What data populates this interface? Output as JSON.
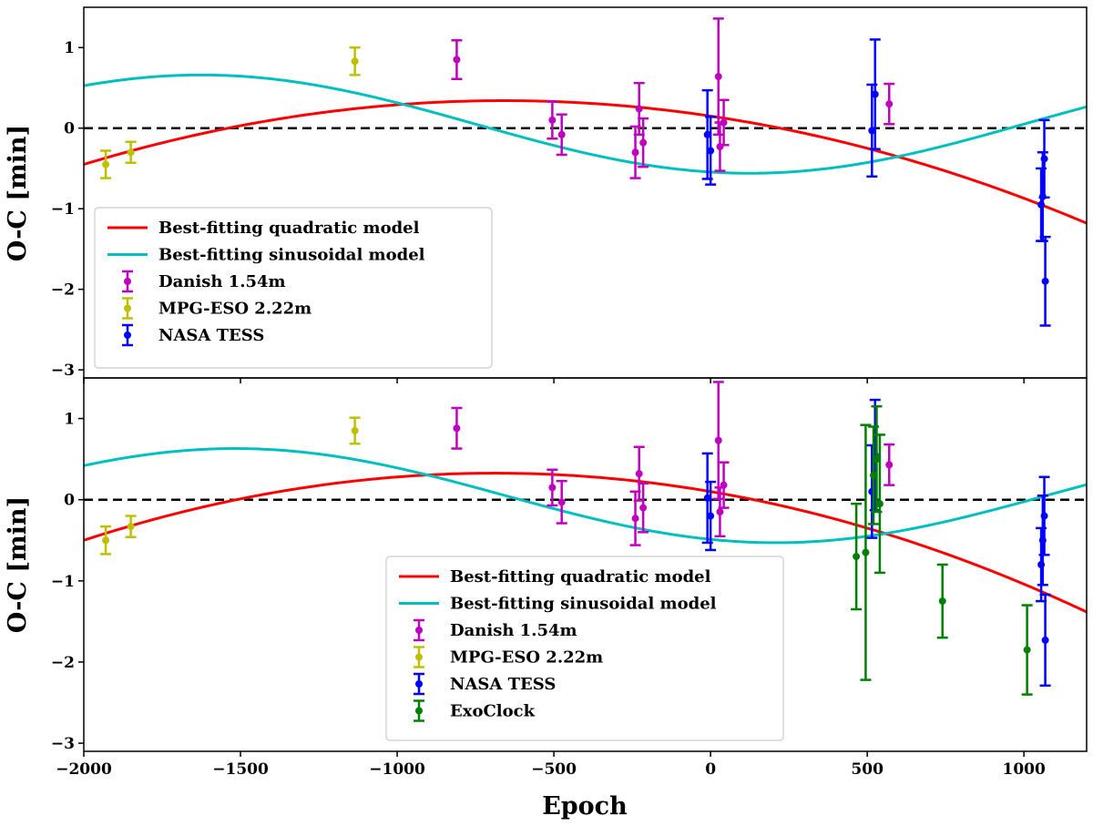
{
  "chart_data": {
    "type": "scatter",
    "xlabel": "Epoch",
    "ylabel": "O-C [min]",
    "xlim": [
      -2000,
      1200
    ],
    "x_ticks": [
      -2000,
      -1500,
      -1000,
      -500,
      0,
      500,
      1000
    ],
    "x_tick_labels": [
      "−2000",
      "−1500",
      "−1000",
      "−500",
      "0",
      "500",
      "1000"
    ],
    "colors": {
      "quadratic": "#ff0000",
      "sinusoidal": "#00bfbf",
      "danish": "#bf00bf",
      "mpg": "#bfbf00",
      "tess": "#0000ff",
      "exoclock": "#007f00"
    },
    "panels": [
      {
        "ylim": [
          -3.1,
          1.5
        ],
        "y_ticks": [
          -3,
          -2,
          -1,
          0,
          1
        ],
        "y_tick_labels": [
          "−3",
          "−2",
          "−1",
          "0",
          "1"
        ],
        "legend_position": "lower-left",
        "legend": [
          "Best-fitting quadratic model",
          "Best-fitting sinusoidal model",
          "Danish 1.54m",
          "MPG-ESO 2.22m",
          "NASA TESS"
        ],
        "models": {
          "quadratic": {
            "a": -4.4e-07,
            "b": -0.00058,
            "c": 0.15
          },
          "sinusoidal": {
            "A": 0.61,
            "period": 3500,
            "phase": -1.795,
            "offset": 0.05
          }
        },
        "series": [
          {
            "key": "mpg",
            "points": [
              [
                -1930,
                -0.45,
                0.17
              ],
              [
                -1850,
                -0.3,
                0.13
              ],
              [
                -1135,
                0.83,
                0.17
              ]
            ]
          },
          {
            "key": "danish",
            "points": [
              [
                -810,
                0.85,
                0.24
              ],
              [
                -505,
                0.1,
                0.23
              ],
              [
                -475,
                -0.08,
                0.25
              ],
              [
                -240,
                -0.3,
                0.32
              ],
              [
                -228,
                0.24,
                0.32
              ],
              [
                -215,
                -0.18,
                0.3
              ],
              [
                25,
                0.64,
                0.72
              ],
              [
                30,
                -0.23,
                0.3
              ],
              [
                42,
                0.07,
                0.28
              ],
              [
                570,
                0.3,
                0.25
              ]
            ]
          },
          {
            "key": "tess",
            "points": [
              [
                -10,
                -0.08,
                0.55
              ],
              [
                0,
                -0.28,
                0.42
              ],
              [
                515,
                -0.03,
                0.57
              ],
              [
                525,
                0.42,
                0.68
              ],
              [
                1055,
                -0.95,
                0.45
              ],
              [
                1060,
                -0.85,
                0.55
              ],
              [
                1065,
                -0.38,
                0.48
              ],
              [
                1068,
                -1.9,
                0.55
              ]
            ]
          }
        ]
      },
      {
        "ylim": [
          -3.1,
          1.5
        ],
        "y_ticks": [
          -3,
          -2,
          -1,
          0,
          1
        ],
        "y_tick_labels": [
          "−3",
          "−2",
          "−1",
          "0",
          "1"
        ],
        "legend_position": "lower-center",
        "legend": [
          "Best-fitting quadratic model",
          "Best-fitting sinusoidal model",
          "Danish 1.54m",
          "MPG-ESO 2.22m",
          "NASA TESS",
          "ExoClock"
        ],
        "models": {
          "quadratic": {
            "a": -4.8e-07,
            "b": -0.00066,
            "c": 0.1
          },
          "sinusoidal": {
            "A": 0.58,
            "period": 3450,
            "phase": -1.95,
            "offset": 0.05
          }
        },
        "series": [
          {
            "key": "mpg",
            "points": [
              [
                -1930,
                -0.5,
                0.17
              ],
              [
                -1850,
                -0.33,
                0.13
              ],
              [
                -1135,
                0.85,
                0.16
              ]
            ]
          },
          {
            "key": "danish",
            "points": [
              [
                -810,
                0.88,
                0.25
              ],
              [
                -505,
                0.15,
                0.22
              ],
              [
                -475,
                -0.03,
                0.26
              ],
              [
                -240,
                -0.23,
                0.33
              ],
              [
                -228,
                0.32,
                0.33
              ],
              [
                -215,
                -0.1,
                0.3
              ],
              [
                25,
                0.73,
                0.72
              ],
              [
                30,
                -0.15,
                0.3
              ],
              [
                42,
                0.18,
                0.28
              ],
              [
                570,
                0.43,
                0.25
              ]
            ]
          },
          {
            "key": "tess",
            "points": [
              [
                -10,
                0.02,
                0.55
              ],
              [
                0,
                -0.2,
                0.42
              ],
              [
                515,
                0.1,
                0.57
              ],
              [
                525,
                0.55,
                0.68
              ],
              [
                1055,
                -0.8,
                0.45
              ],
              [
                1060,
                -0.5,
                0.55
              ],
              [
                1065,
                -0.2,
                0.48
              ],
              [
                1068,
                -1.73,
                0.56
              ]
            ]
          },
          {
            "key": "exoclock",
            "points": [
              [
                465,
                -0.7,
                0.65
              ],
              [
                495,
                -0.65,
                1.57
              ],
              [
                520,
                0.3,
                0.6
              ],
              [
                530,
                0.5,
                0.65
              ],
              [
                540,
                -0.05,
                0.85
              ],
              [
                740,
                -1.25,
                0.45
              ],
              [
                1010,
                -1.85,
                0.55
              ]
            ]
          }
        ]
      }
    ]
  }
}
